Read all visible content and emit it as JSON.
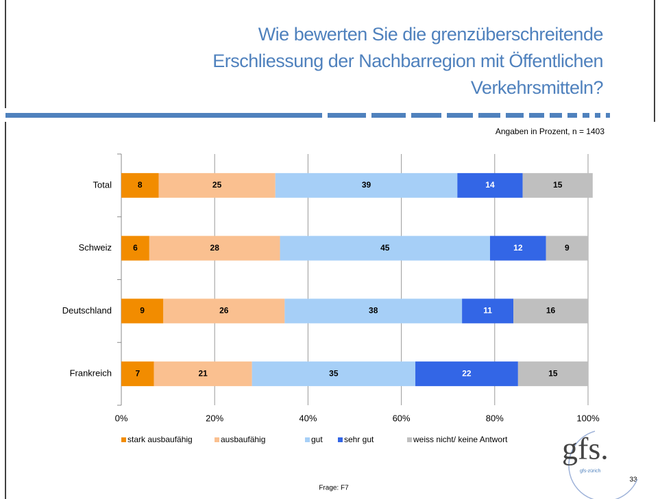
{
  "chart_data": {
    "type": "stacked_barh",
    "title_lines": [
      "Wie bewerten Sie die grenzüberschreitende",
      "Erschliessung der Nachbarregion mit Öffentlichen",
      "Verkehrsmitteln?"
    ],
    "subtitle": "Angaben in Prozent, n = 1403",
    "categories": [
      "Total",
      "Schweiz",
      "Deutschland",
      "Frankreich"
    ],
    "series": [
      {
        "name": "stark ausbaufähig",
        "color": "#f28c00",
        "values": [
          8,
          6,
          9,
          7
        ]
      },
      {
        "name": "ausbaufähig",
        "color": "#fac090",
        "values": [
          25,
          28,
          26,
          21
        ]
      },
      {
        "name": "gut",
        "color": "#a6cff7",
        "values": [
          39,
          45,
          38,
          35
        ]
      },
      {
        "name": "sehr gut",
        "color": "#3366e6",
        "values": [
          14,
          12,
          11,
          22
        ]
      },
      {
        "name": "weiss nicht/ keine Antwort",
        "color": "#bfbfbf",
        "values": [
          15,
          9,
          16,
          15
        ]
      }
    ],
    "xlim": [
      0,
      100
    ],
    "xticks": [
      {
        "value": 0,
        "label": "0%"
      },
      {
        "value": 20,
        "label": "20%"
      },
      {
        "value": 40,
        "label": "40%"
      },
      {
        "value": 60,
        "label": "60%"
      },
      {
        "value": 80,
        "label": "80%"
      },
      {
        "value": 100,
        "label": "100%"
      }
    ],
    "grid": true,
    "legend": "bottom"
  },
  "footer": {
    "question": "Frage: F7",
    "page": "33",
    "logo": "gfs.",
    "logo_sub": "gfs-zürich"
  }
}
